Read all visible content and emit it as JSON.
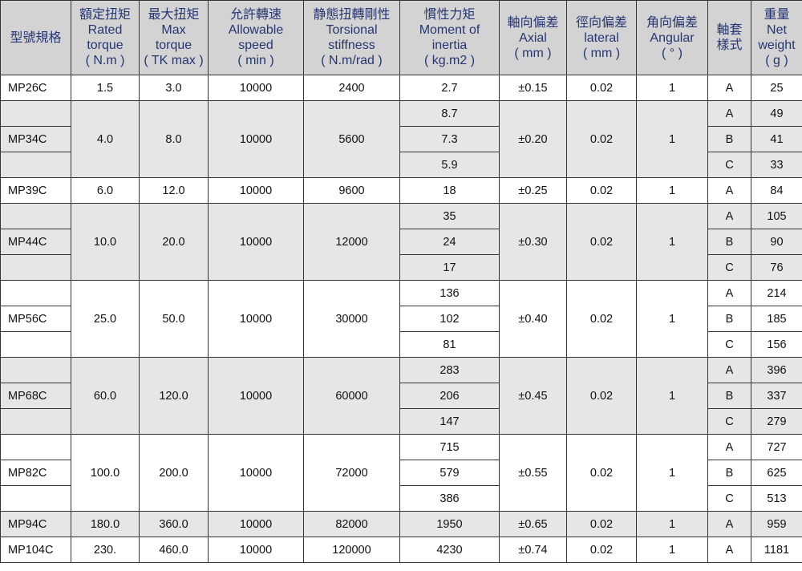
{
  "headers": [
    {
      "zh": "型號規格",
      "en": []
    },
    {
      "zh": "額定扭矩",
      "en": [
        "Rated",
        "torque",
        "( N.m )"
      ]
    },
    {
      "zh": "最大扭矩",
      "en": [
        "Max",
        "torque",
        "( TK max )"
      ]
    },
    {
      "zh": "允許轉速",
      "en": [
        "Allowable",
        "speed",
        "( min )"
      ]
    },
    {
      "zh": "静態扭轉剛性",
      "en": [
        "Torsional",
        "stiffness",
        "( N.m/rad )"
      ]
    },
    {
      "zh": "慣性力矩",
      "en": [
        "Moment of",
        "inertia",
        "( kg.m2 )"
      ]
    },
    {
      "zh": "軸向偏差",
      "en": [
        "Axial",
        "( mm )"
      ]
    },
    {
      "zh": "徑向偏差",
      "en": [
        "lateral",
        "( mm )"
      ]
    },
    {
      "zh": "角向偏差",
      "en": [
        "Angular",
        "( °  )"
      ]
    },
    {
      "zh": "軸套樣式",
      "en": []
    },
    {
      "zh": "重量",
      "en": [
        "Net",
        "weight",
        "( g )"
      ]
    }
  ],
  "groups": [
    {
      "model": "MP26C",
      "rated": "1.5",
      "max": "3.0",
      "speed": "10000",
      "stiff": "2400",
      "axial": "±0.15",
      "lateral": "0.02",
      "angular": "1",
      "rows": [
        [
          "2.7",
          "A",
          "25"
        ]
      ]
    },
    {
      "model": "MP34C",
      "rated": "4.0",
      "max": "8.0",
      "speed": "10000",
      "stiff": "5600",
      "axial": "±0.20",
      "lateral": "0.02",
      "angular": "1",
      "rows": [
        [
          "8.7",
          "A",
          "49"
        ],
        [
          "7.3",
          "B",
          "41"
        ],
        [
          "5.9",
          "C",
          "33"
        ]
      ]
    },
    {
      "model": "MP39C",
      "rated": "6.0",
      "max": "12.0",
      "speed": "10000",
      "stiff": "9600",
      "axial": "±0.25",
      "lateral": "0.02",
      "angular": "1",
      "rows": [
        [
          "18",
          "A",
          "84"
        ]
      ]
    },
    {
      "model": "MP44C",
      "rated": "10.0",
      "max": "20.0",
      "speed": "10000",
      "stiff": "12000",
      "axial": "±0.30",
      "lateral": "0.02",
      "angular": "1",
      "rows": [
        [
          "35",
          "A",
          "105"
        ],
        [
          "24",
          "B",
          "90"
        ],
        [
          "17",
          "C",
          "76"
        ]
      ]
    },
    {
      "model": "MP56C",
      "rated": "25.0",
      "max": "50.0",
      "speed": "10000",
      "stiff": "30000",
      "axial": "±0.40",
      "lateral": "0.02",
      "angular": "1",
      "rows": [
        [
          "136",
          "A",
          "214"
        ],
        [
          "102",
          "B",
          "185"
        ],
        [
          "81",
          "C",
          "156"
        ]
      ]
    },
    {
      "model": "MP68C",
      "rated": "60.0",
      "max": "120.0",
      "speed": "10000",
      "stiff": "60000",
      "axial": "±0.45",
      "lateral": "0.02",
      "angular": "1",
      "rows": [
        [
          "283",
          "A",
          "396"
        ],
        [
          "206",
          "B",
          "337"
        ],
        [
          "147",
          "C",
          "279"
        ]
      ]
    },
    {
      "model": "MP82C",
      "rated": "100.0",
      "max": "200.0",
      "speed": "10000",
      "stiff": "72000",
      "axial": "±0.55",
      "lateral": "0.02",
      "angular": "1",
      "rows": [
        [
          "715",
          "A",
          "727"
        ],
        [
          "579",
          "B",
          "625"
        ],
        [
          "386",
          "C",
          "513"
        ]
      ]
    },
    {
      "model": "MP94C",
      "rated": "180.0",
      "max": "360.0",
      "speed": "10000",
      "stiff": "82000",
      "axial": "±0.65",
      "lateral": "0.02",
      "angular": "1",
      "rows": [
        [
          "1950",
          "A",
          "959"
        ]
      ]
    },
    {
      "model": "MP104C",
      "rated": "230.",
      "max": "460.0",
      "speed": "10000",
      "stiff": "120000",
      "axial": "±0.74",
      "lateral": "0.02",
      "angular": "1",
      "rows": [
        [
          "4230",
          "A",
          "1181"
        ]
      ]
    }
  ],
  "colors": {
    "header_bg": "#d3d3d3",
    "header_text": "#263672",
    "alt_row": "#e6e6e6"
  }
}
